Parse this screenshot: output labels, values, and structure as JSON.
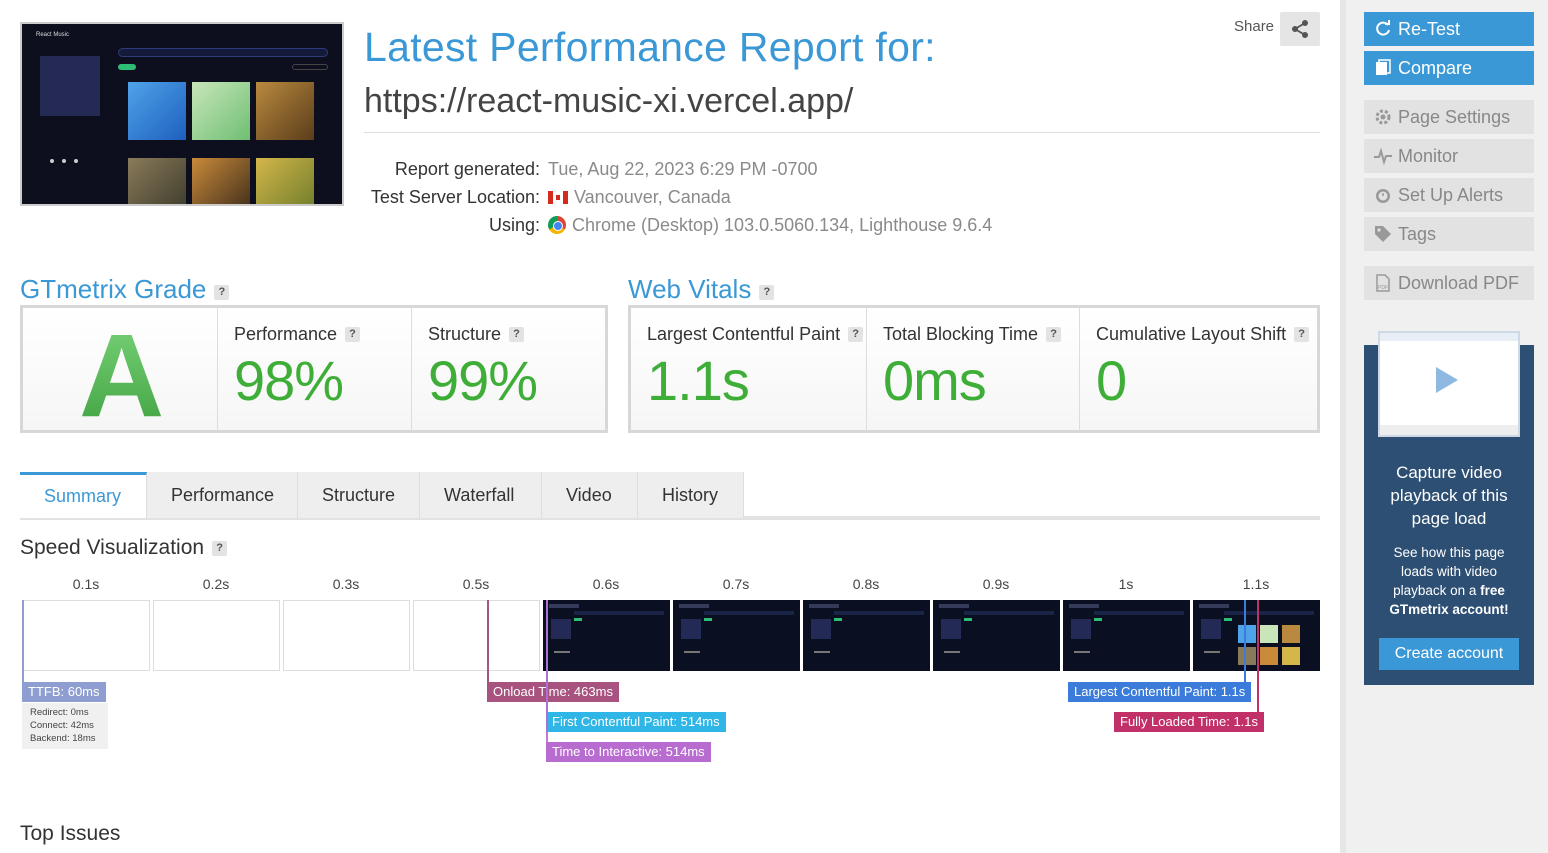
{
  "header": {
    "title": "Latest Performance Report for:",
    "url": "https://react-music-xi.vercel.app/",
    "share_label": "Share"
  },
  "thumbnail": {
    "app_name": "React Music"
  },
  "meta": {
    "labels": [
      "Report generated:",
      "Test Server Location:",
      "Using:"
    ],
    "generated": "Tue, Aug 22, 2023 6:29 PM -0700",
    "location": "Vancouver, Canada",
    "using": "Chrome (Desktop) 103.0.5060.134, Lighthouse 9.6.4"
  },
  "grade": {
    "title": "GTmetrix Grade",
    "letter": "A",
    "performance_label": "Performance",
    "performance_value": "98%",
    "structure_label": "Structure",
    "structure_value": "99%"
  },
  "vitals": {
    "title": "Web Vitals",
    "lcp_label": "Largest Contentful Paint",
    "lcp_value": "1.1s",
    "tbt_label": "Total Blocking Time",
    "tbt_value": "0ms",
    "cls_label": "Cumulative Layout Shift",
    "cls_value": "0"
  },
  "tabs": [
    "Summary",
    "Performance",
    "Structure",
    "Waterfall",
    "Video",
    "History"
  ],
  "speed": {
    "title": "Speed Visualization",
    "frames": [
      "0.1s",
      "0.2s",
      "0.3s",
      "0.5s",
      "0.6s",
      "0.7s",
      "0.8s",
      "0.9s",
      "1s",
      "1.1s"
    ],
    "ttfb": "TTFB: 60ms",
    "ttfb_details": [
      "Redirect: 0ms",
      "Connect: 42ms",
      "Backend: 18ms"
    ],
    "onload": "Onload Time: 463ms",
    "fcp": "First Contentful Paint: 514ms",
    "tti": "Time to Interactive: 514ms",
    "lcp": "Largest Contentful Paint: 1.1s",
    "fully_loaded": "Fully Loaded Time: 1.1s"
  },
  "top_issues_title": "Top Issues",
  "sidebar": {
    "retest": "Re-Test",
    "compare": "Compare",
    "page_settings": "Page Settings",
    "monitor": "Monitor",
    "alerts": "Set Up Alerts",
    "tags": "Tags",
    "download_pdf": "Download PDF"
  },
  "promo": {
    "heading": "Capture video playback of this page load",
    "body_pre": "See how this page loads with video playback on a",
    "body_bold": "free GTmetrix account!",
    "cta": "Create account"
  },
  "colors": {
    "accent": "#3b98d6",
    "grade_green": "#3fae38",
    "ttfb": "#8f9ed0",
    "onload": "#a8527f",
    "fcp": "#2fb6e6",
    "tti": "#b86ccf",
    "lcp": "#3b7bd9",
    "fully_loaded": "#c2306a"
  }
}
